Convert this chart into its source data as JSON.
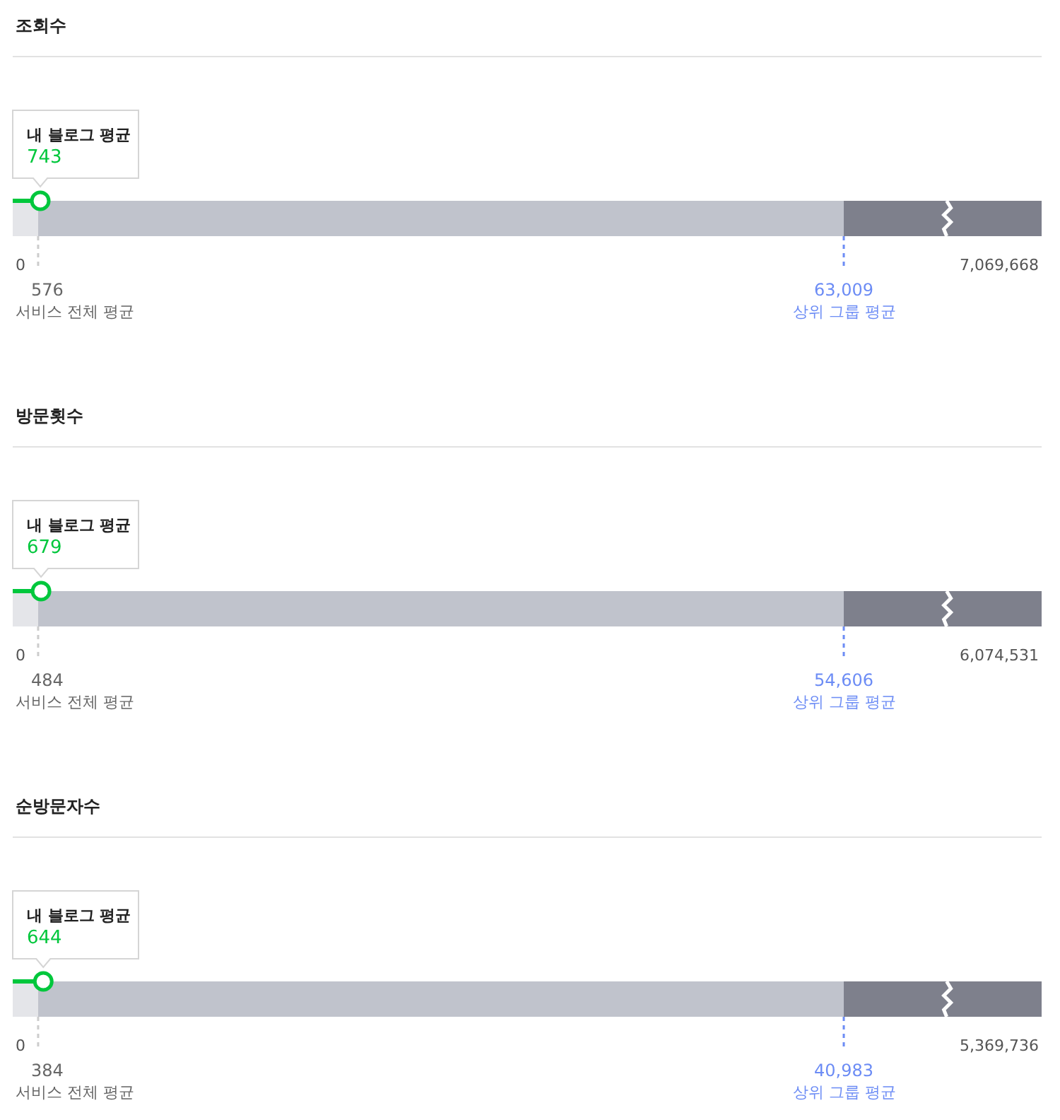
{
  "chart_data": [
    {
      "type": "other",
      "title": "조회수",
      "categories": [
        "내 블로그 평균",
        "서비스 전체 평균",
        "상위 그룹 평균"
      ],
      "values": [
        743,
        576,
        63009
      ],
      "value_labels": [
        "743",
        "576",
        "63,009"
      ],
      "colors": [
        "#00c73c",
        "#666666",
        "#6c8cf5"
      ],
      "annotations": [
        "0",
        "7,069,668"
      ]
    },
    {
      "type": "other",
      "title": "방문횟수",
      "categories": [
        "내 블로그 평균",
        "서비스 전체 평균",
        "상위 그룹 평균"
      ],
      "values": [
        679,
        484,
        54606
      ],
      "value_labels": [
        "679",
        "484",
        "54,606"
      ],
      "colors": [
        "#00c73c",
        "#666666",
        "#6c8cf5"
      ],
      "annotations": [
        "0",
        "6,074,531"
      ]
    },
    {
      "type": "other",
      "title": "순방문자수",
      "categories": [
        "내 블로그 평균",
        "서비스 전체 평균",
        "상위 그룹 평균"
      ],
      "values": [
        644,
        384,
        40983
      ],
      "value_labels": [
        "644",
        "384",
        "40,983"
      ],
      "colors": [
        "#00c73c",
        "#666666",
        "#6c8cf5"
      ],
      "annotations": [
        "0",
        "5,369,736"
      ]
    }
  ]
}
